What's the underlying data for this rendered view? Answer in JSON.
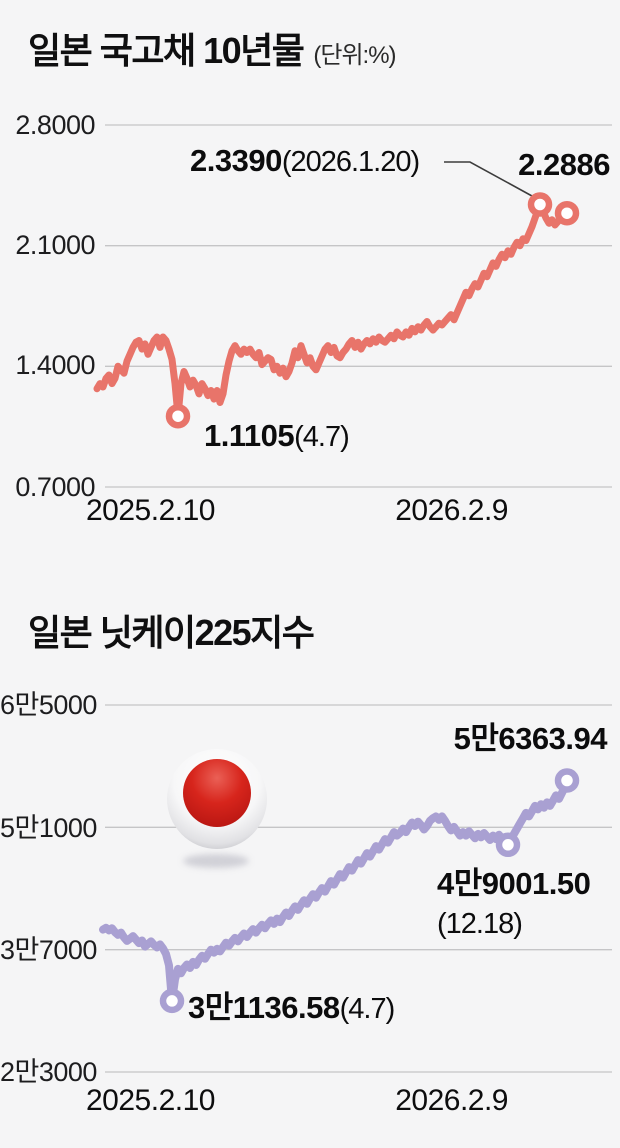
{
  "page": {
    "background": "#f5f5f6"
  },
  "chart_data": [
    {
      "id": "jgb",
      "type": "line",
      "title": "일본 국고채 10년물",
      "unit": "(단위:%)",
      "line_color": "#e8746a",
      "grid": true,
      "legend_position": "none",
      "ylim": [
        0.7,
        2.8
      ],
      "yticks": [
        {
          "label": "2.8000",
          "value": 2.8
        },
        {
          "label": "2.1000",
          "value": 2.1
        },
        {
          "label": "1.4000",
          "value": 1.4
        },
        {
          "label": "0.7000",
          "value": 0.7
        }
      ],
      "xticks": [
        "2025.2.10",
        "2026.2.9"
      ],
      "annotations": {
        "peak": "2.3390",
        "peak_date": "(2026.1.20)",
        "last": "2.2886",
        "low": "1.1105",
        "low_date": "(4.7)"
      },
      "markers": [
        [
          178,
          1.1105
        ],
        [
          540,
          2.339
        ],
        [
          567,
          2.2886
        ]
      ],
      "points": [
        [
          97,
          1.27
        ],
        [
          100,
          1.3
        ],
        [
          103,
          1.28
        ],
        [
          106,
          1.33
        ],
        [
          109,
          1.35
        ],
        [
          112,
          1.3
        ],
        [
          115,
          1.33
        ],
        [
          118,
          1.4
        ],
        [
          121,
          1.38
        ],
        [
          124,
          1.36
        ],
        [
          127,
          1.43
        ],
        [
          130,
          1.47
        ],
        [
          133,
          1.51
        ],
        [
          136,
          1.54
        ],
        [
          139,
          1.55
        ],
        [
          142,
          1.5
        ],
        [
          145,
          1.53
        ],
        [
          148,
          1.47
        ],
        [
          151,
          1.51
        ],
        [
          154,
          1.55
        ],
        [
          157,
          1.57
        ],
        [
          160,
          1.51
        ],
        [
          163,
          1.57
        ],
        [
          166,
          1.55
        ],
        [
          169,
          1.5
        ],
        [
          172,
          1.44
        ],
        [
          175,
          1.3
        ],
        [
          178,
          1.1105
        ],
        [
          181,
          1.3
        ],
        [
          184,
          1.37
        ],
        [
          187,
          1.33
        ],
        [
          190,
          1.28
        ],
        [
          193,
          1.32
        ],
        [
          196,
          1.29
        ],
        [
          199,
          1.24
        ],
        [
          202,
          1.3
        ],
        [
          205,
          1.27
        ],
        [
          208,
          1.23
        ],
        [
          211,
          1.26
        ],
        [
          214,
          1.21
        ],
        [
          217,
          1.26
        ],
        [
          220,
          1.19
        ],
        [
          223,
          1.24
        ],
        [
          226,
          1.35
        ],
        [
          229,
          1.43
        ],
        [
          232,
          1.49
        ],
        [
          235,
          1.52
        ],
        [
          238,
          1.49
        ],
        [
          241,
          1.47
        ],
        [
          244,
          1.5
        ],
        [
          247,
          1.48
        ],
        [
          250,
          1.5
        ],
        [
          253,
          1.47
        ],
        [
          256,
          1.45
        ],
        [
          259,
          1.48
        ],
        [
          262,
          1.41
        ],
        [
          265,
          1.43
        ],
        [
          268,
          1.45
        ],
        [
          271,
          1.44
        ],
        [
          274,
          1.38
        ],
        [
          277,
          1.4
        ],
        [
          280,
          1.36
        ],
        [
          283,
          1.39
        ],
        [
          286,
          1.34
        ],
        [
          289,
          1.37
        ],
        [
          292,
          1.42
        ],
        [
          295,
          1.49
        ],
        [
          298,
          1.45
        ],
        [
          301,
          1.52
        ],
        [
          304,
          1.47
        ],
        [
          307,
          1.42
        ],
        [
          310,
          1.45
        ],
        [
          313,
          1.4
        ],
        [
          316,
          1.38
        ],
        [
          319,
          1.42
        ],
        [
          322,
          1.46
        ],
        [
          325,
          1.5
        ],
        [
          328,
          1.52
        ],
        [
          331,
          1.48
        ],
        [
          334,
          1.51
        ],
        [
          337,
          1.46
        ],
        [
          340,
          1.45
        ],
        [
          343,
          1.48
        ],
        [
          346,
          1.5
        ],
        [
          349,
          1.53
        ],
        [
          352,
          1.55
        ],
        [
          355,
          1.51
        ],
        [
          358,
          1.54
        ],
        [
          361,
          1.5
        ],
        [
          364,
          1.53
        ],
        [
          367,
          1.55
        ],
        [
          370,
          1.53
        ],
        [
          373,
          1.56
        ],
        [
          376,
          1.54
        ],
        [
          379,
          1.57
        ],
        [
          382,
          1.55
        ],
        [
          385,
          1.54
        ],
        [
          388,
          1.56
        ],
        [
          391,
          1.58
        ],
        [
          394,
          1.56
        ],
        [
          397,
          1.6
        ],
        [
          400,
          1.58
        ],
        [
          403,
          1.57
        ],
        [
          406,
          1.6
        ],
        [
          409,
          1.58
        ],
        [
          412,
          1.62
        ],
        [
          415,
          1.6
        ],
        [
          418,
          1.63
        ],
        [
          421,
          1.61
        ],
        [
          424,
          1.64
        ],
        [
          427,
          1.66
        ],
        [
          430,
          1.63
        ],
        [
          433,
          1.61
        ],
        [
          436,
          1.63
        ],
        [
          439,
          1.65
        ],
        [
          442,
          1.64
        ],
        [
          445,
          1.66
        ],
        [
          448,
          1.68
        ],
        [
          451,
          1.7
        ],
        [
          454,
          1.67
        ],
        [
          457,
          1.71
        ],
        [
          460,
          1.75
        ],
        [
          463,
          1.79
        ],
        [
          466,
          1.83
        ],
        [
          469,
          1.81
        ],
        [
          472,
          1.85
        ],
        [
          475,
          1.88
        ],
        [
          478,
          1.86
        ],
        [
          481,
          1.9
        ],
        [
          484,
          1.94
        ],
        [
          487,
          1.92
        ],
        [
          490,
          1.96
        ],
        [
          493,
          2.0
        ],
        [
          496,
          1.98
        ],
        [
          499,
          2.02
        ],
        [
          502,
          2.05
        ],
        [
          505,
          2.03
        ],
        [
          508,
          2.07
        ],
        [
          511,
          2.05
        ],
        [
          514,
          2.09
        ],
        [
          517,
          2.12
        ],
        [
          520,
          2.1
        ],
        [
          523,
          2.14
        ],
        [
          526,
          2.13
        ],
        [
          529,
          2.17
        ],
        [
          532,
          2.21
        ],
        [
          535,
          2.26
        ],
        [
          538,
          2.31
        ],
        [
          540,
          2.339
        ],
        [
          543,
          2.3
        ],
        [
          546,
          2.26
        ],
        [
          549,
          2.23
        ],
        [
          552,
          2.25
        ],
        [
          555,
          2.22
        ],
        [
          558,
          2.24
        ],
        [
          561,
          2.27
        ],
        [
          564,
          2.26
        ],
        [
          567,
          2.2886
        ]
      ]
    },
    {
      "id": "nikkei",
      "type": "line",
      "title": "일본 닛케이225지수",
      "unit": "",
      "line_color": "#a9a0d2",
      "grid": true,
      "legend_position": "none",
      "ylim": [
        23000,
        65000
      ],
      "yticks": [
        {
          "label": "6만5000",
          "value": 65000
        },
        {
          "label": "5만1000",
          "value": 51000
        },
        {
          "label": "3만7000",
          "value": 37000
        },
        {
          "label": "2만3000",
          "value": 23000
        }
      ],
      "xticks": [
        "2025.2.10",
        "2026.2.9"
      ],
      "annotations": {
        "last": "5만6363.94",
        "dip": "4만9001.50",
        "dip_date": "(12.18)",
        "low": "3만1136.58",
        "low_date": "(4.7)"
      },
      "markers": [
        [
          172,
          31136.58
        ],
        [
          508,
          49001.5
        ],
        [
          567,
          56363.94
        ]
      ],
      "points": [
        [
          103,
          39300
        ],
        [
          106,
          39500
        ],
        [
          109,
          39200
        ],
        [
          112,
          39450
        ],
        [
          115,
          39000
        ],
        [
          118,
          38700
        ],
        [
          121,
          38950
        ],
        [
          124,
          38400
        ],
        [
          127,
          38000
        ],
        [
          130,
          38250
        ],
        [
          133,
          38550
        ],
        [
          136,
          38150
        ],
        [
          139,
          37750
        ],
        [
          142,
          38050
        ],
        [
          145,
          37350
        ],
        [
          148,
          37650
        ],
        [
          151,
          37950
        ],
        [
          154,
          37550
        ],
        [
          157,
          37250
        ],
        [
          160,
          37600
        ],
        [
          163,
          37150
        ],
        [
          166,
          36500
        ],
        [
          169,
          35200
        ],
        [
          172,
          31136.58
        ],
        [
          175,
          33600
        ],
        [
          178,
          34800
        ],
        [
          181,
          34300
        ],
        [
          184,
          34900
        ],
        [
          187,
          35300
        ],
        [
          190,
          34900
        ],
        [
          193,
          35600
        ],
        [
          196,
          35250
        ],
        [
          199,
          35850
        ],
        [
          202,
          36300
        ],
        [
          205,
          35950
        ],
        [
          208,
          36500
        ],
        [
          211,
          37000
        ],
        [
          214,
          36650
        ],
        [
          217,
          37100
        ],
        [
          220,
          36800
        ],
        [
          223,
          37300
        ],
        [
          226,
          37800
        ],
        [
          229,
          37450
        ],
        [
          232,
          37950
        ],
        [
          235,
          38350
        ],
        [
          238,
          37950
        ],
        [
          241,
          38450
        ],
        [
          244,
          38850
        ],
        [
          247,
          38450
        ],
        [
          250,
          38950
        ],
        [
          253,
          39350
        ],
        [
          256,
          38950
        ],
        [
          259,
          39450
        ],
        [
          262,
          39850
        ],
        [
          265,
          39450
        ],
        [
          268,
          39950
        ],
        [
          271,
          40350
        ],
        [
          274,
          39950
        ],
        [
          277,
          40550
        ],
        [
          280,
          40150
        ],
        [
          283,
          40750
        ],
        [
          286,
          41250
        ],
        [
          289,
          40850
        ],
        [
          292,
          41450
        ],
        [
          295,
          41950
        ],
        [
          298,
          41550
        ],
        [
          301,
          42150
        ],
        [
          304,
          42650
        ],
        [
          307,
          42250
        ],
        [
          310,
          42850
        ],
        [
          313,
          43350
        ],
        [
          316,
          42950
        ],
        [
          319,
          43550
        ],
        [
          322,
          44050
        ],
        [
          325,
          43650
        ],
        [
          328,
          44250
        ],
        [
          331,
          44850
        ],
        [
          334,
          44450
        ],
        [
          337,
          45050
        ],
        [
          340,
          45650
        ],
        [
          343,
          45250
        ],
        [
          346,
          45850
        ],
        [
          349,
          46450
        ],
        [
          352,
          46050
        ],
        [
          355,
          46650
        ],
        [
          358,
          47250
        ],
        [
          361,
          46850
        ],
        [
          364,
          47450
        ],
        [
          367,
          48050
        ],
        [
          370,
          47650
        ],
        [
          373,
          48250
        ],
        [
          376,
          48850
        ],
        [
          379,
          48450
        ],
        [
          382,
          49050
        ],
        [
          385,
          49650
        ],
        [
          388,
          49250
        ],
        [
          391,
          49850
        ],
        [
          394,
          50450
        ],
        [
          397,
          50050
        ],
        [
          400,
          50350
        ],
        [
          403,
          50850
        ],
        [
          406,
          50450
        ],
        [
          409,
          51050
        ],
        [
          412,
          51550
        ],
        [
          415,
          51150
        ],
        [
          418,
          51650
        ],
        [
          421,
          51250
        ],
        [
          424,
          50750
        ],
        [
          427,
          51150
        ],
        [
          430,
          51750
        ],
        [
          433,
          52050
        ],
        [
          436,
          52250
        ],
        [
          439,
          51850
        ],
        [
          442,
          52250
        ],
        [
          445,
          51750
        ],
        [
          448,
          51150
        ],
        [
          451,
          50650
        ],
        [
          454,
          51050
        ],
        [
          457,
          50550
        ],
        [
          460,
          50050
        ],
        [
          463,
          50450
        ],
        [
          466,
          50050
        ],
        [
          469,
          50550
        ],
        [
          472,
          50150
        ],
        [
          475,
          49750
        ],
        [
          478,
          50250
        ],
        [
          481,
          49850
        ],
        [
          484,
          50350
        ],
        [
          487,
          49950
        ],
        [
          490,
          49550
        ],
        [
          493,
          50050
        ],
        [
          496,
          49650
        ],
        [
          499,
          50150
        ],
        [
          502,
          49750
        ],
        [
          505,
          49350
        ],
        [
          508,
          49001.5
        ],
        [
          511,
          49650
        ],
        [
          514,
          50250
        ],
        [
          517,
          50850
        ],
        [
          520,
          51450
        ],
        [
          523,
          52050
        ],
        [
          526,
          52650
        ],
        [
          529,
          52250
        ],
        [
          532,
          52850
        ],
        [
          535,
          53450
        ],
        [
          538,
          53050
        ],
        [
          541,
          53650
        ],
        [
          544,
          53250
        ],
        [
          547,
          53850
        ],
        [
          550,
          53450
        ],
        [
          553,
          54050
        ],
        [
          556,
          54650
        ],
        [
          559,
          54250
        ],
        [
          562,
          54950
        ],
        [
          565,
          55650
        ],
        [
          567,
          56363.94
        ]
      ]
    }
  ],
  "icons": {
    "flag": "japan-flag"
  }
}
